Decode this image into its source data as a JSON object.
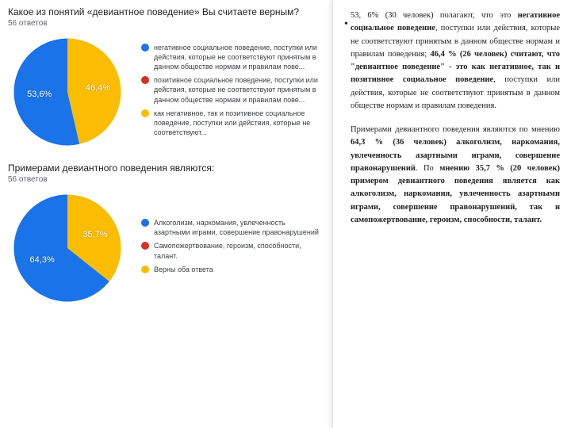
{
  "question1": {
    "title": "Какое из понятий «девиантное поведение» Вы считаете верным?",
    "subtitle": "56&nbsp;ответов",
    "chart": {
      "type": "pie",
      "background_color": "#ffffff",
      "slices": [
        {
          "value": 46.4,
          "label_shown": "46,4%",
          "color": "#fbbc04"
        },
        {
          "value": 53.6,
          "label_shown": "53,6%",
          "color": "#1a73e8"
        }
      ],
      "start_angle_deg": -90
    },
    "legend": [
      {
        "color": "#1a73e8",
        "text": "негативное социальное поведение, поступки или действия, которые не соответствуют принятым в данном обществе нормам и правилам пове..."
      },
      {
        "color": "#d93025",
        "text": "позитивное социальное поведение, поступки или действия, которые не соответствуют принятым в данном обществе нормам и правилам пове..."
      },
      {
        "color": "#fbbc04",
        "text": "как негативное, так и позитивное социальное поведение, поступки или действия, которые не соответствуют..."
      }
    ]
  },
  "question2": {
    "title": "Примерами девиантного поведения являются:",
    "subtitle": "56&nbsp;ответов",
    "chart": {
      "type": "pie",
      "background_color": "#ffffff",
      "slices": [
        {
          "value": 35.7,
          "label_shown": "35,7%",
          "color": "#fbbc04"
        },
        {
          "value": 64.3,
          "label_shown": "64,3%",
          "color": "#1a73e8"
        }
      ],
      "start_angle_deg": -90
    },
    "legend": [
      {
        "color": "#1a73e8",
        "text": "Алкоголизм, наркомания, увлеченность азартными играми, совершение правонарушений"
      },
      {
        "color": "#d93025",
        "text": "Самопожертвование, героизм, способности, талант."
      },
      {
        "color": "#fbbc04",
        "text": "Верны оба ответа"
      }
    ]
  },
  "rightText": {
    "para1": "53, 6% (30 человек) полагают, что это <b>негативное социальное поведение</b>, поступки или действия, которые не соответствуют принятым в данном обществе нормам и правилам поведения; <b>46,4 % (26 человек) считают, что \"девиантное поведение\" - это как негативное, так и позитивное социальное поведение</b>, поступки или действия, которые не соответствуют принятым в данном обществе нормам и правилам поведения.",
    "para2": "Примерами девиантного поведения являются по мнению <b>64,3 % (36 человек) алкоголизм, наркомания, увлеченность азартными играми, совершение правонарушений</b>. По <b>мнению 35,7 % (20 человек) примером девиантного поведения является как алкоголизм, наркомания, увлеченность азартными играми, совершение правонарушений, так и самопожертвование, героизм, способности, талант.</b>"
  }
}
